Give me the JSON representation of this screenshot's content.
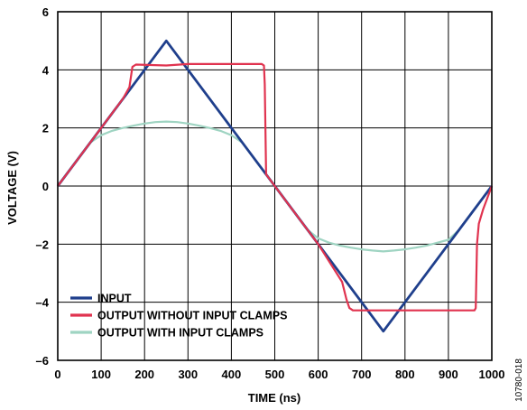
{
  "chart_data": {
    "type": "line",
    "xlabel": "TIME (ns)",
    "ylabel": "VOLTAGE (V)",
    "xlim": [
      0,
      1000
    ],
    "ylim": [
      -6,
      6
    ],
    "xticks": [
      0,
      100,
      200,
      300,
      400,
      500,
      600,
      700,
      800,
      900,
      1000
    ],
    "yticks": [
      -6,
      -4,
      -2,
      0,
      2,
      4,
      6
    ],
    "xtick_labels": [
      "0",
      "100",
      "200",
      "300",
      "400",
      "500",
      "600",
      "700",
      "800",
      "900",
      "1000"
    ],
    "ytick_labels": [
      "–6",
      "–4",
      "–2",
      "0",
      "2",
      "4",
      "6"
    ],
    "grid": true,
    "legend_position": "bottom-left",
    "series": [
      {
        "name": "OUTPUT WITH INPUT CLAMPS",
        "color": "#9fd4c2",
        "x": [
          0,
          25,
          50,
          75,
          100,
          125,
          150,
          175,
          200,
          225,
          250,
          275,
          300,
          325,
          350,
          375,
          400,
          425,
          450,
          475,
          500,
          525,
          550,
          575,
          600,
          625,
          650,
          675,
          700,
          725,
          750,
          775,
          800,
          825,
          850,
          875,
          900,
          925,
          950,
          975,
          1000
        ],
        "y": [
          0,
          0.5,
          1.0,
          1.5,
          1.75,
          1.9,
          2.0,
          2.08,
          2.15,
          2.2,
          2.22,
          2.2,
          2.15,
          2.08,
          2.0,
          1.9,
          1.75,
          1.5,
          1.0,
          0.5,
          0,
          -0.5,
          -1.0,
          -1.5,
          -1.8,
          -1.95,
          -2.05,
          -2.12,
          -2.18,
          -2.22,
          -2.25,
          -2.22,
          -2.18,
          -2.12,
          -2.05,
          -1.95,
          -1.85,
          -1.5,
          -1.0,
          -0.5,
          0
        ]
      },
      {
        "name": "INPUT",
        "color": "#1f3f8c",
        "x": [
          0,
          250,
          750,
          1000
        ],
        "y": [
          0,
          5,
          -5,
          0
        ]
      },
      {
        "name": "OUTPUT WITHOUT INPUT CLAMPS",
        "color": "#e0334f",
        "x": [
          0,
          100,
          150,
          165,
          172,
          180,
          250,
          300,
          400,
          470,
          475,
          477,
          480,
          500,
          600,
          655,
          665,
          672,
          680,
          750,
          800,
          900,
          960,
          963,
          966,
          970,
          980,
          1000
        ],
        "y": [
          0,
          2.0,
          3.0,
          3.4,
          4.1,
          4.18,
          4.15,
          4.2,
          4.2,
          4.2,
          4.15,
          3.5,
          0.4,
          0,
          -2.0,
          -3.3,
          -3.9,
          -4.2,
          -4.28,
          -4.28,
          -4.28,
          -4.28,
          -4.28,
          -4.2,
          -2.0,
          -1.3,
          -0.8,
          0
        ]
      }
    ]
  },
  "figure_id": "10780-018"
}
